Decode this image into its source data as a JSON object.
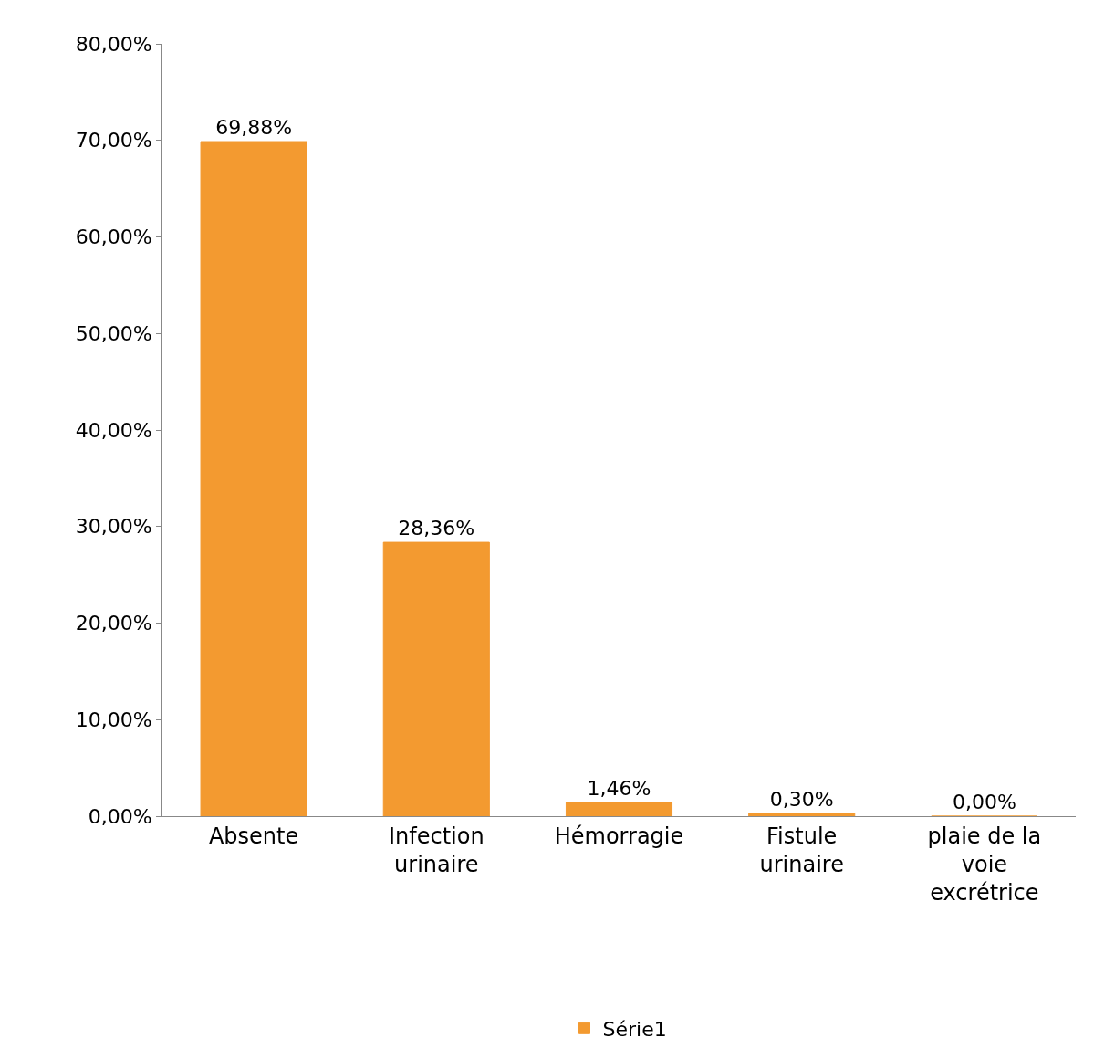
{
  "chart_data": {
    "type": "bar",
    "categories": [
      "Absente",
      "Infection urinaire",
      "Hémorragie",
      "Fistule urinaire",
      "plaie de la voie excrétrice"
    ],
    "series": [
      {
        "name": "Série1",
        "color": "#f39a30",
        "values": [
          69.88,
          28.36,
          1.46,
          0.3,
          0.0
        ],
        "value_labels": [
          "69,88%",
          "28,36%",
          "1,46%",
          "0,30%",
          "0,00%"
        ]
      }
    ],
    "ylim": [
      0,
      80
    ],
    "yticks": [
      {
        "value": 0,
        "label": "0,00%"
      },
      {
        "value": 10,
        "label": "10,00%"
      },
      {
        "value": 20,
        "label": "20,00%"
      },
      {
        "value": 30,
        "label": "30,00%"
      },
      {
        "value": 40,
        "label": "40,00%"
      },
      {
        "value": 50,
        "label": "50,00%"
      },
      {
        "value": 60,
        "label": "60,00%"
      },
      {
        "value": 70,
        "label": "70,00%"
      },
      {
        "value": 80,
        "label": "80,00%"
      }
    ],
    "legend": "bottom"
  }
}
